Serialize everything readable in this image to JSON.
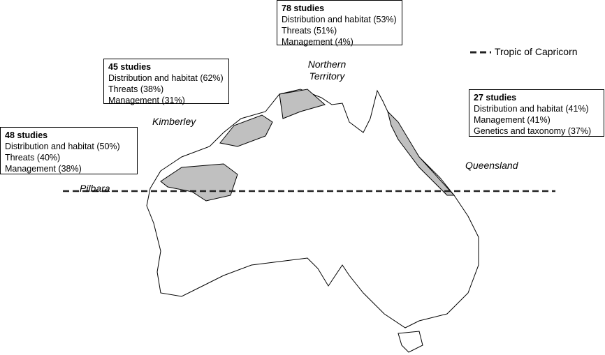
{
  "boxes": [
    {
      "title": "78 studies",
      "items": [
        "Distribution and habitat (53%)",
        "Threats (51%)",
        "Management (4%)"
      ]
    },
    {
      "title": "45 studies",
      "items": [
        "Distribution and habitat (62%)",
        "Threats (38%)",
        "Management (31%)"
      ]
    },
    {
      "title": "48 studies",
      "items": [
        "Distribution and habitat (50%)",
        "Threats (40%)",
        "Management (38%)"
      ]
    },
    {
      "title": "27 studies",
      "items": [
        "Distribution and habitat (41%)",
        "Management (41%)",
        "Genetics and taxonomy (37%)"
      ]
    }
  ],
  "regions": [
    "Northern Territory",
    "Kimberley",
    "Pilbara",
    "Queensland"
  ],
  "legend": {
    "label": "Tropic of Capricorn"
  }
}
